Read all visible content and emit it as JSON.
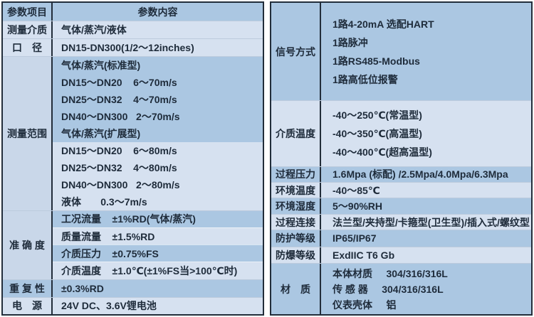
{
  "colors": {
    "band_medium": "#abc7e2",
    "band_light": "#d6e1f0",
    "merged_label_bg": "#c9d7e9",
    "outer_border": "#222d3a",
    "row_divider": "#bccbdd",
    "text": "#1e2b3a"
  },
  "left": {
    "header": {
      "param": "参数项目",
      "content": "参数内容"
    },
    "medium_row": {
      "label": "测量介质",
      "value": "气体/蒸汽/液体"
    },
    "diameter_row": {
      "label": "口　径",
      "value": "DN15-DN300(1/2～12inches)"
    },
    "range": {
      "label": "测量范围",
      "lines": [
        "气体/蒸汽(标准型)",
        "DN15～DN20    6～70m/s",
        "DN25～DN32    4～70m/s",
        "DN40～DN300   2～70m/s",
        "气体/蒸汽(扩展型)",
        "DN15～DN20    6～80m/s",
        "DN25～DN32    4～80m/s",
        "DN40～DN300   2～80m/s",
        "液体       0.3～7m/s"
      ]
    },
    "accuracy": {
      "label": "准 确 度",
      "lines": [
        "工况流量    ±1%RD(气体/蒸汽)",
        "质量流量    ±1.5%RD",
        "介质压力    ±0.75%FS",
        "介质温度    ±1.0℃(±1%FS当>100℃时)"
      ]
    },
    "repeat_row": {
      "label": "重 复 性",
      "value": "±0.3%RD"
    },
    "power_row": {
      "label": "电　源",
      "value": "24V DC、3.6V锂电池"
    }
  },
  "right": {
    "signal": {
      "label": "信号方式",
      "lines": [
        "1路4-20mA 选配HART",
        "1路脉冲",
        "1路RS485-Modbus",
        "1路高低位报警"
      ]
    },
    "medium_temp": {
      "label": "介质温度",
      "lines": [
        "-40～250℃(常温型)",
        "-40～350℃(高温型)",
        "-40～400℃(超高温型)"
      ]
    },
    "process_pressure": {
      "label": "过程压力",
      "value": "1.6Mpa (标配) /2.5Mpa/4.0Mpa/6.3Mpa"
    },
    "ambient_temp": {
      "label": "环境温度",
      "value": "-40～85℃"
    },
    "ambient_humidity": {
      "label": "环境湿度",
      "value": "5～90%RH"
    },
    "process_connection": {
      "label": "过程连接",
      "value": "法兰型/夹持型/卡箍型(卫生型)/插入式/螺纹型"
    },
    "protection": {
      "label": "防护等级",
      "value": "IP65/IP67"
    },
    "explosion": {
      "label": "防爆等级",
      "value": "ExdIIC T6 Gb"
    },
    "material": {
      "label": "材　质",
      "lines": [
        "本体材质     304/316/316L",
        "传 感 器     304/316/316L",
        "仪表壳体     铝"
      ]
    }
  }
}
